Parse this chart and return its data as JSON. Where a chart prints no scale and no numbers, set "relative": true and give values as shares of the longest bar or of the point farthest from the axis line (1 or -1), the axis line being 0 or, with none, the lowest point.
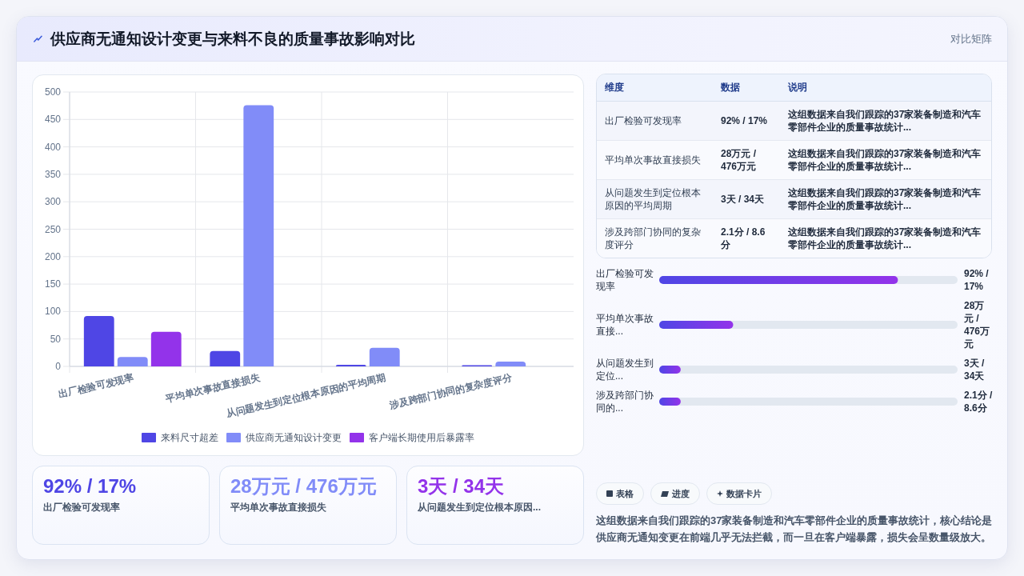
{
  "chart_data": [
    {
      "type": "bar",
      "title": "供应商无通知设计变更与来料不良的质量事故影响对比",
      "annotations": [
        "对比矩阵"
      ],
      "categories": [
        "出厂检验可发现率",
        "平均单次事故直接损失",
        "从问题发生到定位根本原因的平均周期",
        "涉及跨部门协同的复杂度评分"
      ],
      "series": [
        {
          "name": "来料尺寸超差",
          "color": "#4f46e5",
          "values": [
            92,
            28,
            3,
            2.1
          ]
        },
        {
          "name": "供应商无通知设计变更",
          "color": "#818cf8",
          "values": [
            17,
            476,
            34,
            8.6
          ]
        },
        {
          "name": "客户端长期使用后暴露率",
          "color": "#9333ea",
          "values": [
            63,
            null,
            null,
            null
          ]
        }
      ],
      "ylim": [
        0,
        500
      ],
      "yticks": [
        0,
        50,
        100,
        150,
        200,
        250,
        300,
        350,
        400,
        450,
        500
      ],
      "grid": true,
      "legend": "bottom"
    },
    {
      "type": "other",
      "annotations": [
        "维度",
        "数据",
        "说明",
        "出厂检验可发现率",
        "92% / 17%",
        "这组数据来自我们跟踪的37家装备制造和汽车零部件企业的质量事故统计...",
        "平均单次事故直接损失",
        "28万元 / 476万元",
        "这组数据来自我们跟踪的37家装备制造和汽车零部件企业的质量事故统计...",
        "从问题发生到定位根本原因的平均周期",
        "3天 / 34天",
        "这组数据来自我们跟踪的37家装备制造和汽车零部件企业的质量事故统计...",
        "涉及跨部门协同的复杂度评分",
        "2.1分 / 8.6分",
        "这组数据来自我们跟踪的37家装备制造和汽车零部件企业的质量事故统计..."
      ]
    },
    {
      "type": "bar",
      "orientation": "horizontal",
      "relative": true,
      "categories": [
        "出厂检验可发现率",
        "平均单次事故直接...",
        "从问题发生到定位...",
        "涉及跨部门协同的..."
      ],
      "values": [
        1,
        0.31,
        0.09,
        0.09
      ],
      "color": "#4f46e5",
      "annotations": [
        "92% / 17%",
        "28万元 / 476万元",
        "3天 / 34天",
        "2.1分 / 8.6分"
      ]
    },
    {
      "type": "other",
      "annotations": [
        "92% / 17%",
        "出厂检验可发现率",
        "28万元 / 476万元",
        "平均单次事故直接损失",
        "3天 / 34天",
        "从问题发生到定位根本原因..."
      ]
    },
    {
      "type": "other",
      "annotations": [
        "表格",
        "进度",
        "数据卡片",
        "这组数据来自我们跟踪的37家装备制造和汽车零部件企业的质量事故统计，核心结论是供应商无通知变更在前端几乎无法拦截，而一旦在客户端暴露，损失会呈数量级放大。"
      ]
    }
  ]
}
